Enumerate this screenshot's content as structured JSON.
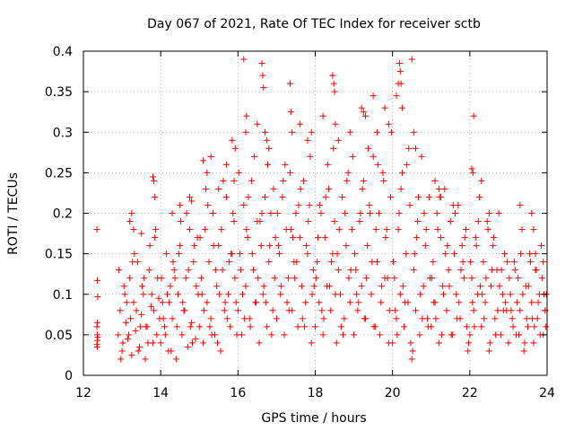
{
  "chart_data": {
    "type": "scatter",
    "title": "Day 067 of 2021, Rate Of TEC Index for receiver sctb",
    "xlabel": "GPS time / hours",
    "ylabel": "ROTI / TECUs",
    "xlim": [
      12,
      24
    ],
    "ylim": [
      0,
      0.4
    ],
    "grid": true,
    "legend": "none",
    "marker": "+",
    "x_ticks": [
      12,
      14,
      16,
      18,
      20,
      22,
      24
    ],
    "x_tick_labels": [
      "12",
      "14",
      "16",
      "18",
      "20",
      "22",
      "24"
    ],
    "y_ticks": [
      0,
      0.05,
      0.1,
      0.15,
      0.2,
      0.25,
      0.3,
      0.35,
      0.4
    ],
    "y_tick_labels": [
      "0",
      "0.05",
      "0.1",
      "0.15",
      "0.2",
      "0.25",
      "0.3",
      "0.35",
      "0.4"
    ],
    "series": [
      {
        "name": "ROTI",
        "color": "#ff0000",
        "x": [
          12.35,
          12.36,
          12.37,
          12.36,
          12.35,
          12.36,
          12.37,
          12.36,
          12.35,
          12.36,
          12.9,
          12.95,
          13.0,
          13.05,
          13.1,
          13.15,
          13.2,
          13.25,
          13.3,
          13.35,
          13.4,
          13.45,
          13.5,
          13.55,
          13.6,
          13.65,
          13.7,
          13.75,
          13.8,
          13.85,
          13.9,
          13.95,
          12.92,
          13.02,
          13.12,
          13.22,
          13.32,
          13.42,
          13.52,
          13.62,
          13.72,
          13.82,
          13.92,
          12.97,
          13.07,
          13.17,
          13.27,
          13.37,
          13.47,
          13.57,
          13.67,
          13.77,
          13.87,
          13.97,
          13.2,
          13.25,
          13.3,
          13.5,
          13.8,
          13.82,
          13.85,
          14.0,
          14.05,
          14.1,
          14.15,
          14.2,
          14.25,
          14.3,
          14.35,
          14.4,
          14.45,
          14.5,
          14.55,
          14.6,
          14.65,
          14.7,
          14.75,
          14.8,
          14.85,
          14.9,
          14.95,
          14.02,
          14.12,
          14.22,
          14.32,
          14.42,
          14.52,
          14.62,
          14.72,
          14.82,
          14.92,
          14.07,
          14.17,
          14.27,
          14.37,
          14.47,
          14.57,
          14.67,
          14.77,
          14.87,
          14.97,
          14.3,
          14.5,
          14.75,
          14.8,
          15.0,
          15.05,
          15.1,
          15.15,
          15.2,
          15.25,
          15.3,
          15.35,
          15.4,
          15.45,
          15.5,
          15.55,
          15.6,
          15.65,
          15.7,
          15.75,
          15.8,
          15.85,
          15.9,
          15.95,
          15.02,
          15.12,
          15.22,
          15.32,
          15.42,
          15.52,
          15.62,
          15.72,
          15.82,
          15.92,
          15.07,
          15.17,
          15.27,
          15.37,
          15.47,
          15.57,
          15.67,
          15.77,
          15.87,
          15.97,
          15.1,
          15.2,
          15.3,
          15.5,
          15.7,
          15.85,
          15.9,
          15.93,
          16.0,
          16.05,
          16.1,
          16.15,
          16.2,
          16.25,
          16.3,
          16.35,
          16.4,
          16.45,
          16.5,
          16.55,
          16.6,
          16.65,
          16.7,
          16.75,
          16.8,
          16.85,
          16.9,
          16.95,
          16.02,
          16.12,
          16.22,
          16.32,
          16.42,
          16.52,
          16.62,
          16.72,
          16.82,
          16.92,
          16.07,
          16.17,
          16.27,
          16.37,
          16.47,
          16.57,
          16.67,
          16.77,
          16.87,
          16.97,
          16.15,
          16.2,
          16.22,
          16.5,
          16.62,
          16.64,
          16.66,
          16.7,
          16.75,
          16.8,
          17.0,
          17.05,
          17.1,
          17.15,
          17.2,
          17.25,
          17.3,
          17.35,
          17.4,
          17.45,
          17.5,
          17.55,
          17.6,
          17.65,
          17.7,
          17.75,
          17.8,
          17.85,
          17.9,
          17.95,
          17.02,
          17.12,
          17.22,
          17.32,
          17.42,
          17.52,
          17.62,
          17.72,
          17.82,
          17.92,
          17.07,
          17.17,
          17.27,
          17.37,
          17.47,
          17.57,
          17.67,
          17.77,
          17.87,
          17.97,
          17.35,
          17.37,
          17.4,
          17.6,
          17.8,
          17.9,
          18.0,
          18.05,
          18.1,
          18.15,
          18.2,
          18.25,
          18.3,
          18.35,
          18.4,
          18.45,
          18.5,
          18.55,
          18.6,
          18.65,
          18.7,
          18.75,
          18.8,
          18.85,
          18.9,
          18.95,
          18.02,
          18.12,
          18.22,
          18.32,
          18.42,
          18.52,
          18.62,
          18.72,
          18.82,
          18.92,
          18.07,
          18.17,
          18.27,
          18.37,
          18.47,
          18.57,
          18.67,
          18.77,
          18.87,
          18.97,
          18.45,
          18.48,
          18.5,
          18.52,
          18.2,
          18.6,
          18.9,
          19.0,
          19.05,
          19.1,
          19.15,
          19.2,
          19.25,
          19.3,
          19.35,
          19.4,
          19.45,
          19.5,
          19.55,
          19.6,
          19.65,
          19.7,
          19.75,
          19.8,
          19.85,
          19.9,
          19.95,
          19.02,
          19.12,
          19.22,
          19.32,
          19.42,
          19.52,
          19.62,
          19.72,
          19.82,
          19.92,
          19.07,
          19.17,
          19.27,
          19.37,
          19.47,
          19.57,
          19.67,
          19.77,
          19.87,
          19.97,
          19.2,
          19.25,
          19.3,
          19.5,
          19.6,
          19.8,
          19.9,
          20.0,
          20.05,
          20.1,
          20.15,
          20.2,
          20.25,
          20.3,
          20.35,
          20.4,
          20.45,
          20.5,
          20.55,
          20.6,
          20.65,
          20.7,
          20.75,
          20.8,
          20.85,
          20.9,
          20.95,
          20.02,
          20.12,
          20.22,
          20.32,
          20.42,
          20.52,
          20.62,
          20.72,
          20.82,
          20.92,
          20.07,
          20.17,
          20.27,
          20.37,
          20.47,
          20.57,
          20.67,
          20.77,
          20.87,
          20.97,
          20.1,
          20.15,
          20.18,
          20.2,
          20.22,
          20.25,
          20.5,
          20.55,
          20.6,
          21.0,
          21.05,
          21.1,
          21.15,
          21.2,
          21.25,
          21.3,
          21.35,
          21.4,
          21.45,
          21.5,
          21.55,
          21.6,
          21.65,
          21.7,
          21.75,
          21.8,
          21.85,
          21.9,
          21.95,
          21.02,
          21.12,
          21.22,
          21.32,
          21.42,
          21.52,
          21.62,
          21.72,
          21.82,
          21.92,
          21.07,
          21.17,
          21.27,
          21.37,
          21.47,
          21.57,
          21.67,
          21.77,
          21.87,
          21.97,
          21.1,
          21.2,
          21.25,
          22.0,
          22.05,
          22.1,
          22.15,
          22.2,
          22.25,
          22.3,
          22.35,
          22.4,
          22.45,
          22.5,
          22.55,
          22.6,
          22.65,
          22.7,
          22.75,
          22.8,
          22.85,
          22.9,
          22.95,
          22.02,
          22.12,
          22.22,
          22.32,
          22.42,
          22.52,
          22.62,
          22.72,
          22.82,
          22.92,
          22.07,
          22.17,
          22.27,
          22.37,
          22.47,
          22.57,
          22.67,
          22.77,
          22.87,
          22.97,
          22.05,
          22.08,
          22.1,
          22.3,
          22.5,
          23.0,
          23.05,
          23.1,
          23.15,
          23.2,
          23.25,
          23.3,
          23.35,
          23.4,
          23.45,
          23.5,
          23.55,
          23.6,
          23.65,
          23.7,
          23.75,
          23.8,
          23.85,
          23.9,
          23.95,
          23.02,
          23.12,
          23.22,
          23.32,
          23.42,
          23.52,
          23.62,
          23.72,
          23.82,
          23.92,
          23.07,
          23.17,
          23.27,
          23.37,
          23.47,
          23.57,
          23.67,
          23.77,
          23.87,
          23.97,
          23.3,
          23.6,
          23.65,
          23.7,
          23.9,
          23.95,
          23.98
        ],
        "y": [
          0.18,
          0.117,
          0.097,
          0.065,
          0.06,
          0.05,
          0.047,
          0.043,
          0.038,
          0.035,
          0.05,
          0.08,
          0.03,
          0.11,
          0.065,
          0.045,
          0.12,
          0.025,
          0.09,
          0.055,
          0.14,
          0.035,
          0.075,
          0.1,
          0.02,
          0.06,
          0.13,
          0.085,
          0.04,
          0.17,
          0.05,
          0.095,
          0.13,
          0.04,
          0.09,
          0.07,
          0.15,
          0.03,
          0.11,
          0.06,
          0.16,
          0.08,
          0.12,
          0.02,
          0.1,
          0.05,
          0.14,
          0.08,
          0.06,
          0.12,
          0.04,
          0.1,
          0.18,
          0.07,
          0.19,
          0.2,
          0.18,
          0.175,
          0.245,
          0.24,
          0.22,
          0.04,
          0.09,
          0.06,
          0.15,
          0.03,
          0.11,
          0.07,
          0.13,
          0.02,
          0.1,
          0.16,
          0.05,
          0.08,
          0.12,
          0.035,
          0.18,
          0.065,
          0.14,
          0.045,
          0.17,
          0.12,
          0.05,
          0.09,
          0.14,
          0.06,
          0.19,
          0.08,
          0.13,
          0.04,
          0.11,
          0.07,
          0.1,
          0.03,
          0.12,
          0.15,
          0.09,
          0.2,
          0.06,
          0.16,
          0.1,
          0.2,
          0.21,
          0.22,
          0.215,
          0.06,
          0.12,
          0.04,
          0.18,
          0.09,
          0.14,
          0.07,
          0.2,
          0.05,
          0.11,
          0.16,
          0.03,
          0.13,
          0.08,
          0.22,
          0.1,
          0.06,
          0.15,
          0.19,
          0.09,
          0.17,
          0.08,
          0.21,
          0.05,
          0.13,
          0.1,
          0.24,
          0.07,
          0.15,
          0.12,
          0.1,
          0.23,
          0.06,
          0.16,
          0.04,
          0.18,
          0.09,
          0.14,
          0.2,
          0.05,
          0.265,
          0.25,
          0.27,
          0.23,
          0.26,
          0.29,
          0.24,
          0.28,
          0.08,
          0.15,
          0.05,
          0.21,
          0.11,
          0.17,
          0.07,
          0.24,
          0.13,
          0.09,
          0.19,
          0.04,
          0.16,
          0.1,
          0.22,
          0.06,
          0.14,
          0.2,
          0.08,
          0.12,
          0.25,
          0.1,
          0.18,
          0.06,
          0.27,
          0.12,
          0.2,
          0.09,
          0.16,
          0.23,
          0.13,
          0.07,
          0.22,
          0.15,
          0.09,
          0.19,
          0.11,
          0.26,
          0.05,
          0.17,
          0.39,
          0.3,
          0.32,
          0.31,
          0.385,
          0.37,
          0.355,
          0.3,
          0.29,
          0.28,
          0.07,
          0.16,
          0.1,
          0.22,
          0.05,
          0.18,
          0.12,
          0.25,
          0.08,
          0.14,
          0.2,
          0.06,
          0.17,
          0.11,
          0.24,
          0.09,
          0.15,
          0.21,
          0.04,
          0.13,
          0.2,
          0.11,
          0.26,
          0.08,
          0.17,
          0.14,
          0.23,
          0.06,
          0.19,
          0.1,
          0.15,
          0.24,
          0.09,
          0.18,
          0.12,
          0.21,
          0.07,
          0.16,
          0.27,
          0.11,
          0.36,
          0.325,
          0.3,
          0.31,
          0.29,
          0.3,
          0.06,
          0.14,
          0.09,
          0.2,
          0.05,
          0.17,
          0.11,
          0.23,
          0.08,
          0.15,
          0.19,
          0.04,
          0.13,
          0.1,
          0.22,
          0.07,
          0.16,
          0.25,
          0.09,
          0.18,
          0.12,
          0.21,
          0.07,
          0.26,
          0.14,
          0.1,
          0.18,
          0.05,
          0.24,
          0.13,
          0.17,
          0.08,
          0.22,
          0.11,
          0.28,
          0.15,
          0.06,
          0.2,
          0.12,
          0.27,
          0.37,
          0.36,
          0.35,
          0.31,
          0.32,
          0.29,
          0.3,
          0.05,
          0.13,
          0.08,
          0.19,
          0.11,
          0.24,
          0.07,
          0.16,
          0.21,
          0.1,
          0.27,
          0.06,
          0.14,
          0.2,
          0.09,
          0.25,
          0.12,
          0.18,
          0.04,
          0.22,
          0.15,
          0.09,
          0.23,
          0.12,
          0.2,
          0.06,
          0.26,
          0.11,
          0.17,
          0.08,
          0.1,
          0.2,
          0.07,
          0.28,
          0.14,
          0.18,
          0.05,
          0.24,
          0.12,
          0.3,
          0.33,
          0.325,
          0.32,
          0.345,
          0.3,
          0.33,
          0.31,
          0.04,
          0.12,
          0.07,
          0.18,
          0.1,
          0.25,
          0.06,
          0.15,
          0.09,
          0.21,
          0.02,
          0.13,
          0.08,
          0.19,
          0.05,
          0.27,
          0.11,
          0.16,
          0.07,
          0.22,
          0.14,
          0.05,
          0.23,
          0.09,
          0.28,
          0.03,
          0.17,
          0.1,
          0.2,
          0.06,
          0.08,
          0.2,
          0.11,
          0.26,
          0.04,
          0.15,
          0.22,
          0.07,
          0.18,
          0.12,
          0.345,
          0.36,
          0.385,
          0.375,
          0.36,
          0.33,
          0.39,
          0.3,
          0.28,
          0.06,
          0.14,
          0.09,
          0.2,
          0.04,
          0.17,
          0.11,
          0.23,
          0.08,
          0.13,
          0.19,
          0.05,
          0.15,
          0.1,
          0.21,
          0.07,
          0.16,
          0.12,
          0.18,
          0.03,
          0.12,
          0.07,
          0.22,
          0.1,
          0.16,
          0.05,
          0.2,
          0.09,
          0.14,
          0.06,
          0.09,
          0.18,
          0.05,
          0.15,
          0.11,
          0.21,
          0.07,
          0.13,
          0.17,
          0.04,
          0.24,
          0.23,
          0.22,
          0.05,
          0.12,
          0.08,
          0.17,
          0.1,
          0.22,
          0.06,
          0.14,
          0.09,
          0.19,
          0.03,
          0.11,
          0.16,
          0.07,
          0.13,
          0.2,
          0.05,
          0.1,
          0.15,
          0.08,
          0.14,
          0.06,
          0.19,
          0.1,
          0.12,
          0.04,
          0.17,
          0.08,
          0.13,
          0.09,
          0.09,
          0.16,
          0.11,
          0.07,
          0.18,
          0.13,
          0.05,
          0.11,
          0.08,
          0.14,
          0.255,
          0.25,
          0.32,
          0.24,
          0.2,
          0.04,
          0.1,
          0.07,
          0.14,
          0.05,
          0.12,
          0.08,
          0.18,
          0.03,
          0.11,
          0.06,
          0.15,
          0.09,
          0.04,
          0.13,
          0.07,
          0.1,
          0.16,
          0.05,
          0.08,
          0.12,
          0.06,
          0.09,
          0.15,
          0.04,
          0.11,
          0.07,
          0.13,
          0.05,
          0.1,
          0.08,
          0.13,
          0.05,
          0.1,
          0.07,
          0.14,
          0.06,
          0.09,
          0.12,
          0.06,
          0.21,
          0.2,
          0.18,
          0.15,
          0.14,
          0.08,
          0.1
        ]
      }
    ]
  }
}
